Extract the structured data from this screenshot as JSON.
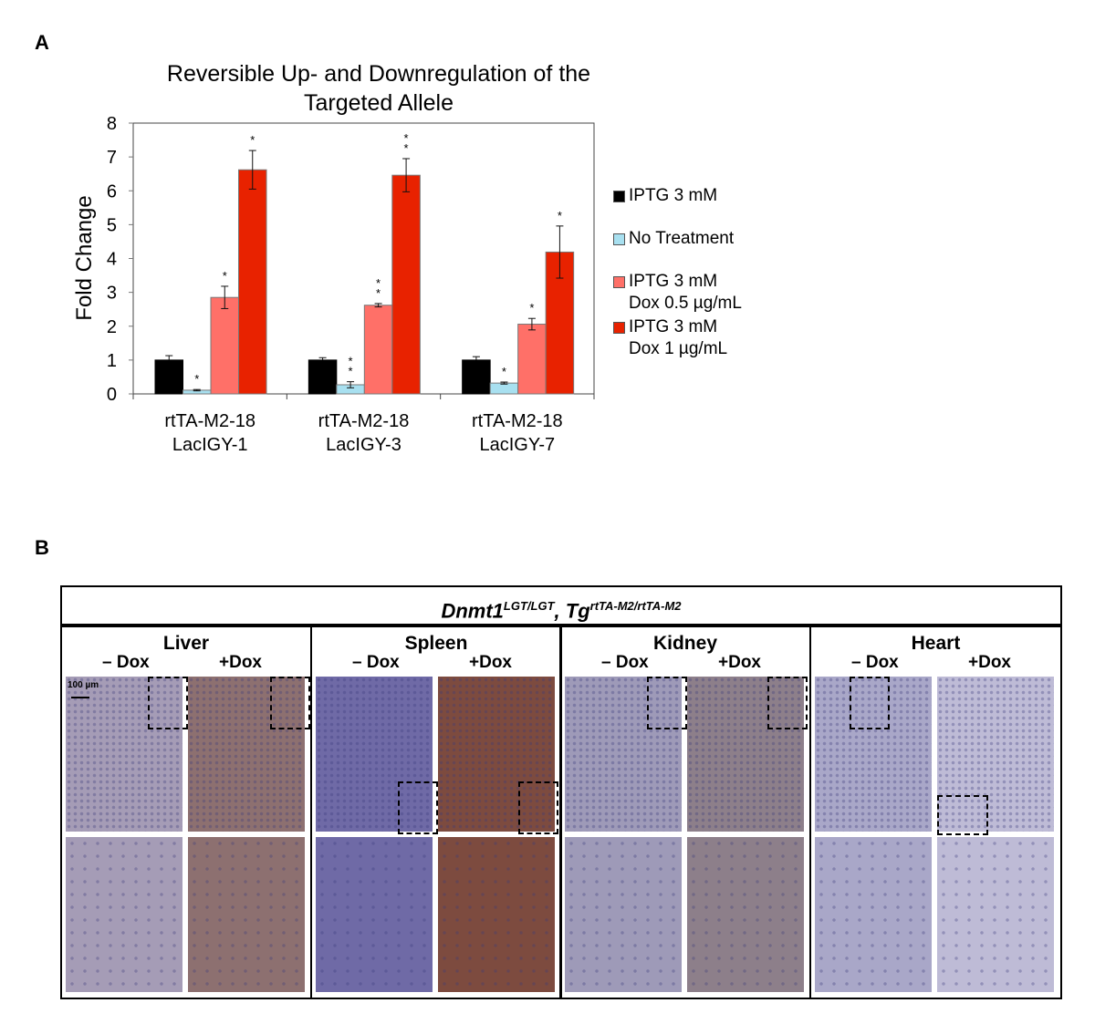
{
  "panel_a": {
    "label": "A"
  },
  "panel_b": {
    "label": "B",
    "header_gene": "Dnmt1",
    "header_gene_sup": "LGT/LGT",
    "header_sep": ", ",
    "header_tg": "Tg",
    "header_tg_sup": "rtTA-M2/rtTA-M2",
    "scale_bar": "100 µm",
    "minus_dox": "– Dox",
    "plus_dox": "+Dox",
    "tissues": [
      "Liver",
      "Spleen",
      "Kidney",
      "Heart"
    ],
    "colors": {
      "Liver": [
        "#a59cb6",
        "#8d7070"
      ],
      "Spleen": [
        "#6f6aa6",
        "#7d4b3f"
      ],
      "Kidney": [
        "#9e9ab8",
        "#8d7f8a"
      ],
      "Heart": [
        "#a9a7c8",
        "#bebbd6"
      ]
    }
  },
  "chart_data": {
    "type": "bar",
    "title": "Reversible Up- and Downregulation of the Targeted Allele",
    "title_lines": [
      "Reversible Up- and Downregulation of the",
      "Targeted Allele"
    ],
    "ylabel": "Fold Change",
    "xlabel": "",
    "ylim": [
      0,
      8
    ],
    "yticks": [
      "0",
      "1",
      "2",
      "3",
      "4",
      "5",
      "6",
      "7",
      "8"
    ],
    "grid": false,
    "legend_position": "right",
    "categories": [
      [
        "rtTA-M2-18",
        "LacIGY-1"
      ],
      [
        "rtTA-M2-18",
        "LacIGY-3"
      ],
      [
        "rtTA-M2-18",
        "LacIGY-7"
      ]
    ],
    "series": [
      {
        "name": "IPTG 3 mM",
        "legend_lines": [
          "IPTG 3 mM"
        ],
        "color": "#000000",
        "values": [
          1.0,
          1.0,
          1.0
        ],
        "errors": [
          0.13,
          0.07,
          0.1
        ],
        "stars": [
          0,
          0,
          0
        ]
      },
      {
        "name": "No Treatment",
        "legend_lines": [
          "No Treatment"
        ],
        "color": "#a8e0f0",
        "values": [
          0.11,
          0.27,
          0.32
        ],
        "errors": [
          0.02,
          0.09,
          0.03
        ],
        "stars": [
          1,
          2,
          1
        ]
      },
      {
        "name": "IPTG 3 mM Dox 0.5 µg/mL",
        "legend_lines": [
          "IPTG 3 mM",
          "Dox 0.5 µg/mL"
        ],
        "color": "#ff7068",
        "values": [
          2.85,
          2.62,
          2.06
        ],
        "errors": [
          0.33,
          0.05,
          0.17
        ],
        "stars": [
          1,
          2,
          1
        ]
      },
      {
        "name": "IPTG 3 mM Dox 1 µg/mL",
        "legend_lines": [
          "IPTG 3 mM",
          "Dox 1 µg/mL"
        ],
        "color": "#e82200",
        "values": [
          6.62,
          6.46,
          4.19
        ],
        "errors": [
          0.57,
          0.49,
          0.77
        ],
        "stars": [
          1,
          2,
          1
        ]
      }
    ]
  }
}
